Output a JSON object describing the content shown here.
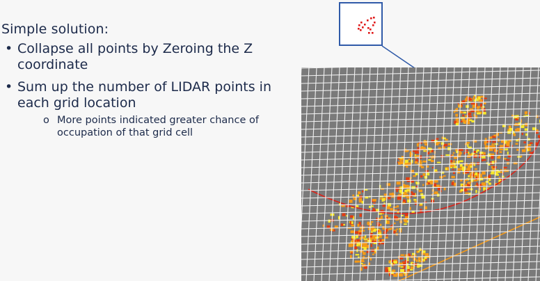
{
  "slide": {
    "heading": "Simple solution:",
    "bullets": [
      {
        "marker": "•",
        "text": "Collapse all points by Zeroing the Z coordinate"
      },
      {
        "marker": "•",
        "text": "Sum up the number of LIDAR points in each grid location"
      }
    ],
    "sub_bullet": {
      "marker": "o",
      "text": "More points indicated greater chance of occupation of that grid cell"
    }
  },
  "colors": {
    "text": "#1c2a4a",
    "inset_border": "#2f5aa8",
    "grid_line": "#f2f2f2",
    "grid_background": "#7a7a7a",
    "point_high": "#f7e82a",
    "point_mid": "#f59a18",
    "point_low": "#e23c12",
    "arc": "#d9241a"
  }
}
